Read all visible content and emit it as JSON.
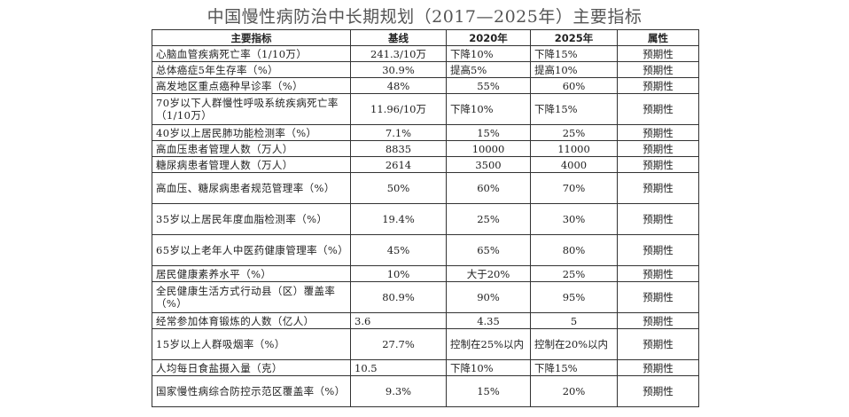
{
  "title": "中国慢性病防治中长期规划（2017—2025年）主要指标",
  "headers": {
    "indicator": "主要指标",
    "baseline": "基线",
    "y2020": "2020年",
    "y2025": "2025年",
    "attribute": "属性"
  },
  "rows": [
    {
      "indicator": "心脑血管疾病死亡率（1/10万）",
      "baseline": "241.3/10万",
      "y2020": "下降10%",
      "y2025": "下降15%",
      "attribute": "预期性"
    },
    {
      "indicator": "总体癌症5年生存率（%）",
      "baseline": "30.9%",
      "y2020": "提高5%",
      "y2025": "提高10%",
      "attribute": "预期性"
    },
    {
      "indicator": "高发地区重点癌种早诊率（%）",
      "baseline": "48%",
      "y2020": "55%",
      "y2025": "60%",
      "attribute": "预期性"
    },
    {
      "indicator": "70岁以下人群慢性呼吸系统疾病死亡率（1/10万）",
      "baseline": "11.96/10万",
      "y2020": "下降10%",
      "y2025": "下降15%",
      "attribute": "预期性"
    },
    {
      "indicator": "40岁以上居民肺功能检测率（%）",
      "baseline": "7.1%",
      "y2020": "15%",
      "y2025": "25%",
      "attribute": "预期性"
    },
    {
      "indicator": "高血压患者管理人数（万人）",
      "baseline": "8835",
      "y2020": "10000",
      "y2025": "11000",
      "attribute": "预期性"
    },
    {
      "indicator": "糖尿病患者管理人数（万人）",
      "baseline": "2614",
      "y2020": "3500",
      "y2025": "4000",
      "attribute": "预期性"
    },
    {
      "indicator": "高血压、糖尿病患者规范管理率（%）",
      "baseline": "50%",
      "y2020": "60%",
      "y2025": "70%",
      "attribute": "预期性"
    },
    {
      "indicator": "35岁以上居民年度血脂检测率（%）",
      "baseline": "19.4%",
      "y2020": "25%",
      "y2025": "30%",
      "attribute": "预期性"
    },
    {
      "indicator": "65岁以上老年人中医药健康管理率（%）",
      "baseline": "45%",
      "y2020": "65%",
      "y2025": "80%",
      "attribute": "预期性"
    },
    {
      "indicator": "居民健康素养水平（%）",
      "baseline": "10%",
      "y2020": "大于20%",
      "y2025": "25%",
      "attribute": "预期性"
    },
    {
      "indicator": "全民健康生活方式行动县（区）覆盖率（%）",
      "baseline": "80.9%",
      "y2020": "90%",
      "y2025": "95%",
      "attribute": "预期性"
    },
    {
      "indicator": "经常参加体育锻炼的人数（亿人）",
      "baseline": "3.6",
      "y2020": "4.35",
      "y2025": "5",
      "attribute": "预期性"
    },
    {
      "indicator": "15岁以上人群吸烟率（%）",
      "baseline": "27.7%",
      "y2020": "控制在25%以内",
      "y2025": "控制在20%以内",
      "attribute": "预期性"
    },
    {
      "indicator": "人均每日食盐摄入量（克）",
      "baseline": "10.5",
      "y2020": "下降10%",
      "y2025": "下降15%",
      "attribute": "预期性"
    },
    {
      "indicator": "国家慢性病综合防控示范区覆盖率（%）",
      "baseline": "9.3%",
      "y2020": "15%",
      "y2025": "20%",
      "attribute": "预期性"
    }
  ]
}
